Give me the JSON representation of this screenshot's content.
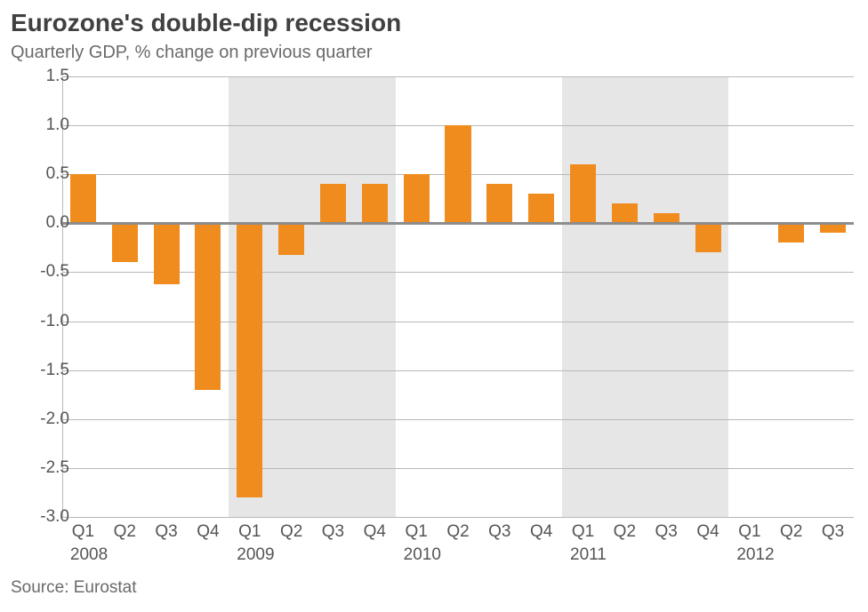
{
  "title": "Eurozone's double-dip recession",
  "subtitle": "Quarterly GDP, % change on previous quarter",
  "source": "Source: Eurostat",
  "chart": {
    "type": "bar",
    "ylim": [
      -3.0,
      1.5
    ],
    "ytick_step": 0.5,
    "ytick_labels": [
      "1.5",
      "1.0",
      "0.5",
      "0.0",
      "-0.5",
      "-1.0",
      "-1.5",
      "-2.0",
      "-2.5",
      "-3.0"
    ],
    "ytick_values": [
      1.5,
      1.0,
      0.5,
      0.0,
      -0.5,
      -1.0,
      -1.5,
      -2.0,
      -2.5,
      -3.0
    ],
    "grid_color": "#b8b8b8",
    "baseline_color": "#8d8d8d",
    "background_color": "#ffffff",
    "shaded_band_color": "#e6e6e6",
    "bar_color": "#f08c1e",
    "bar_width_ratio": 0.62,
    "label_fontsize": 19,
    "title_fontsize": 28,
    "shaded_years": [
      2009,
      2011
    ],
    "quarters": [
      "Q1",
      "Q2",
      "Q3",
      "Q4",
      "Q1",
      "Q2",
      "Q3",
      "Q4",
      "Q1",
      "Q2",
      "Q3",
      "Q4",
      "Q1",
      "Q2",
      "Q3",
      "Q4",
      "Q1",
      "Q2",
      "Q3"
    ],
    "years": [
      2008,
      2008,
      2008,
      2008,
      2009,
      2009,
      2009,
      2009,
      2010,
      2010,
      2010,
      2010,
      2011,
      2011,
      2011,
      2011,
      2012,
      2012,
      2012
    ],
    "year_labels": [
      "2008",
      "2009",
      "2010",
      "2011",
      "2012"
    ],
    "year_label_at_index": [
      0,
      4,
      8,
      12,
      16
    ],
    "values": [
      0.5,
      -0.4,
      -0.62,
      -1.7,
      -2.8,
      -0.32,
      0.4,
      0.4,
      0.5,
      1.0,
      0.4,
      0.3,
      0.6,
      0.2,
      0.1,
      -0.3,
      0.0,
      -0.2,
      -0.1
    ]
  }
}
